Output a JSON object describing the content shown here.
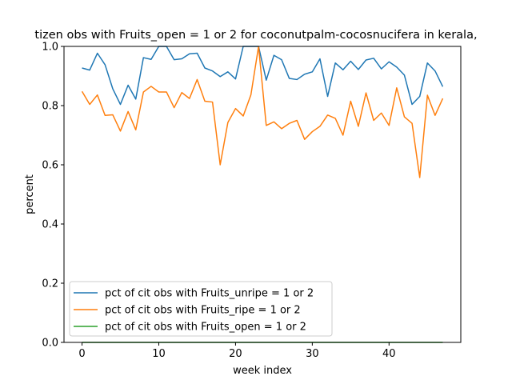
{
  "chart_data": {
    "type": "line",
    "title": "tizen obs with Fruits_open = 1 or 2 for coconutpalm-cocosnucifera in kerala,",
    "xlabel": "week index",
    "ylabel": "percent",
    "xlim": [
      -2.35,
      49.35
    ],
    "ylim": [
      0.0,
      1.0
    ],
    "xticks": [
      0,
      10,
      20,
      30,
      40
    ],
    "yticks": [
      0.0,
      0.2,
      0.4,
      0.6,
      0.8,
      1.0
    ],
    "xtick_labels": [
      "0",
      "10",
      "20",
      "30",
      "40"
    ],
    "ytick_labels": [
      "0.0",
      "0.2",
      "0.4",
      "0.6",
      "0.8",
      "1.0"
    ],
    "grid": false,
    "legend_position": "lower-left",
    "x": [
      0,
      1,
      2,
      3,
      4,
      5,
      6,
      7,
      8,
      9,
      10,
      11,
      12,
      13,
      14,
      15,
      16,
      17,
      18,
      19,
      20,
      21,
      22,
      23,
      24,
      25,
      26,
      27,
      28,
      29,
      30,
      31,
      32,
      33,
      34,
      35,
      36,
      37,
      38,
      39,
      40,
      41,
      42,
      43,
      44,
      45,
      46,
      47
    ],
    "series": [
      {
        "name": "pct of cit obs with Fruits_unripe = 1 or 2",
        "color": "#1f77b4",
        "values": [
          0.927,
          0.92,
          0.977,
          0.938,
          0.857,
          0.804,
          0.869,
          0.822,
          0.962,
          0.956,
          1.0,
          1.0,
          0.955,
          0.958,
          0.975,
          0.977,
          0.927,
          0.917,
          0.898,
          0.914,
          0.89,
          1.0,
          1.0,
          1.0,
          0.886,
          0.97,
          0.955,
          0.892,
          0.888,
          0.906,
          0.914,
          0.958,
          0.831,
          0.944,
          0.921,
          0.95,
          0.922,
          0.954,
          0.96,
          0.924,
          0.948,
          0.93,
          0.903,
          0.804,
          0.831,
          0.944,
          0.917,
          0.864
        ]
      },
      {
        "name": "pct of cit obs with Fruits_ripe = 1 or 2",
        "color": "#ff7f0e",
        "values": [
          0.848,
          0.804,
          0.836,
          0.767,
          0.769,
          0.714,
          0.78,
          0.718,
          0.846,
          0.865,
          0.846,
          0.846,
          0.793,
          0.844,
          0.824,
          0.888,
          0.815,
          0.812,
          0.6,
          0.743,
          0.79,
          0.765,
          0.836,
          1.0,
          0.733,
          0.745,
          0.722,
          0.74,
          0.75,
          0.686,
          0.712,
          0.73,
          0.768,
          0.757,
          0.7,
          0.815,
          0.73,
          0.843,
          0.75,
          0.775,
          0.733,
          0.86,
          0.762,
          0.74,
          0.557,
          0.835,
          0.767,
          0.824
        ]
      },
      {
        "name": "pct of cit obs with Fruits_open = 1 or 2",
        "color": "#2ca02c",
        "values": [
          0,
          0,
          0,
          0,
          0,
          0,
          0,
          0,
          0,
          0,
          0,
          0,
          0,
          0,
          0,
          0,
          0,
          0,
          0,
          0,
          0,
          0,
          0,
          0,
          0,
          0,
          0,
          0,
          0,
          0,
          0,
          0,
          0,
          0,
          0,
          0,
          0,
          0,
          0,
          0,
          0,
          0,
          0,
          0,
          0,
          0,
          0,
          0
        ]
      }
    ]
  }
}
